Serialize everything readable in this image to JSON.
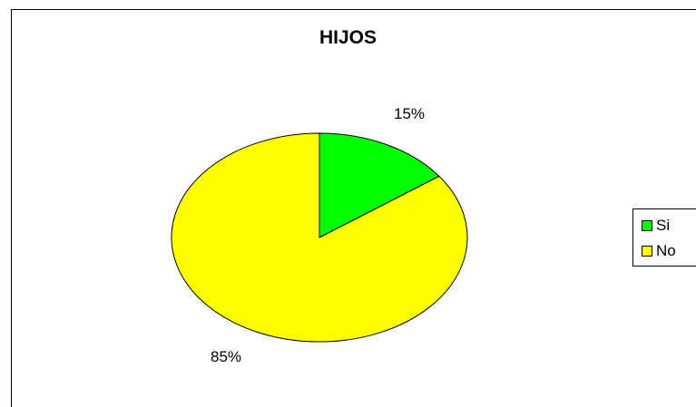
{
  "chart_data": {
    "type": "pie",
    "title": "HIJOS",
    "categories": [
      "Si",
      "No"
    ],
    "values": [
      15,
      85
    ],
    "data_labels": [
      "15%",
      "85%"
    ],
    "colors": [
      "#00ff00",
      "#ffff00"
    ],
    "legend_position": "right",
    "grid": false
  }
}
